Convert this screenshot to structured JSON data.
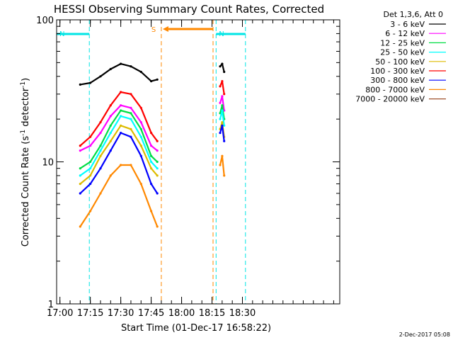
{
  "chart_data": {
    "type": "line",
    "title": "HESSI Observing Summary Count Rates, Corrected",
    "xlabel": "Start Time (01-Dec-17 16:58:22)",
    "ylabel_main": "Corrected Count Rate (s",
    "ylabel_sup1": "-1",
    "ylabel_mid": " detector",
    "ylabel_sup2": "-1",
    "ylabel_end": ")",
    "y_scale": "log",
    "xlim": [
      "16:58:22",
      "19:18:00"
    ],
    "ylim": [
      1,
      100
    ],
    "x_ticks": [
      "17:00",
      "17:15",
      "17:30",
      "17:45",
      "18:00",
      "18:15",
      "18:30"
    ],
    "y_ticks": [
      "1",
      "10",
      "100"
    ],
    "grid": false,
    "legend_position": "top-right",
    "legend_title": "Det 1,3,6, Att 0",
    "timestamp": "2-Dec-2017 05:08",
    "intervals": [
      {
        "label": "N",
        "color": "#00e5e5",
        "style": "dashed",
        "type": "night",
        "spans": [
          [
            "16:58:22",
            "17:14:30"
          ],
          [
            "18:17:00",
            "18:31:30"
          ]
        ]
      },
      {
        "label": "S",
        "color": "#ff8800",
        "style": "dashed",
        "type": "saa",
        "spans": [
          [
            "17:50:00",
            "18:15:30"
          ]
        ]
      }
    ],
    "series": [
      {
        "name": "3 - 6 keV",
        "color": "#000000",
        "segments": [
          {
            "x": [
              "17:10",
              "17:15",
              "17:20",
              "17:25",
              "17:30",
              "17:35",
              "17:40",
              "17:45",
              "17:48"
            ],
            "y": [
              35,
              36,
              40,
              45,
              49,
              47,
              43,
              37,
              38
            ]
          },
          {
            "x": [
              "18:19",
              "18:20",
              "18:21"
            ],
            "y": [
              47,
              49,
              43
            ]
          }
        ]
      },
      {
        "name": "6 - 12 keV",
        "color": "#ff00ff",
        "segments": [
          {
            "x": [
              "17:10",
              "17:15",
              "17:20",
              "17:25",
              "17:30",
              "17:35",
              "17:40",
              "17:45",
              "17:48"
            ],
            "y": [
              12,
              13,
              16,
              21,
              25,
              24,
              19,
              13,
              12
            ]
          },
          {
            "x": [
              "18:19",
              "18:20",
              "18:21"
            ],
            "y": [
              26,
              29,
              23
            ]
          }
        ]
      },
      {
        "name": "12 - 25 keV",
        "color": "#00dd44",
        "segments": [
          {
            "x": [
              "17:10",
              "17:15",
              "17:20",
              "17:25",
              "17:30",
              "17:35",
              "17:40",
              "17:45",
              "17:48"
            ],
            "y": [
              9,
              10,
              13,
              18,
              23,
              22,
              17,
              11,
              10
            ]
          },
          {
            "x": [
              "18:19",
              "18:20",
              "18:21"
            ],
            "y": [
              22,
              25,
              20
            ]
          }
        ]
      },
      {
        "name": "25 - 50 keV",
        "color": "#00ffff",
        "segments": [
          {
            "x": [
              "17:10",
              "17:15",
              "17:20",
              "17:25",
              "17:30",
              "17:35",
              "17:40",
              "17:45",
              "17:48"
            ],
            "y": [
              8,
              9,
              12,
              16,
              21,
              20,
              15,
              10,
              9
            ]
          },
          {
            "x": [
              "18:19",
              "18:20",
              "18:21"
            ],
            "y": [
              20,
              23,
              18
            ]
          }
        ]
      },
      {
        "name": "50 - 100 keV",
        "color": "#ddbb00",
        "segments": [
          {
            "x": [
              "17:10",
              "17:15",
              "17:20",
              "17:25",
              "17:30",
              "17:35",
              "17:40",
              "17:45",
              "17:48"
            ],
            "y": [
              7,
              8,
              11,
              14,
              18,
              17,
              13,
              9,
              8
            ]
          },
          {
            "x": [
              "18:19",
              "18:20",
              "18:21"
            ],
            "y": [
              17,
              19,
              15
            ]
          }
        ]
      },
      {
        "name": "100 - 300 keV",
        "color": "#ff0000",
        "segments": [
          {
            "x": [
              "17:10",
              "17:15",
              "17:20",
              "17:25",
              "17:30",
              "17:35",
              "17:40",
              "17:45",
              "17:48"
            ],
            "y": [
              13,
              15,
              19,
              25,
              31,
              30,
              24,
              16,
              14
            ]
          },
          {
            "x": [
              "18:19",
              "18:20",
              "18:21"
            ],
            "y": [
              34,
              37,
              30
            ]
          }
        ]
      },
      {
        "name": "300 - 800 keV",
        "color": "#0000ff",
        "segments": [
          {
            "x": [
              "17:10",
              "17:15",
              "17:20",
              "17:25",
              "17:30",
              "17:35",
              "17:40",
              "17:45",
              "17:48"
            ],
            "y": [
              6,
              7,
              9,
              12,
              16,
              15,
              11,
              7,
              6
            ]
          },
          {
            "x": [
              "18:19",
              "18:20",
              "18:21"
            ],
            "y": [
              16,
              18,
              14
            ]
          }
        ]
      },
      {
        "name": "800 - 7000 keV",
        "color": "#ff8800",
        "segments": [
          {
            "x": [
              "17:10",
              "17:15",
              "17:20",
              "17:25",
              "17:30",
              "17:35",
              "17:40",
              "17:45",
              "17:48"
            ],
            "y": [
              3.5,
              4.5,
              6,
              8,
              9.5,
              9.5,
              7,
              4.5,
              3.5
            ]
          },
          {
            "x": [
              "18:19",
              "18:20",
              "18:21"
            ],
            "y": [
              9.5,
              11,
              8
            ]
          }
        ]
      },
      {
        "name": "7000 - 20000 keV",
        "color": "#a0522d",
        "segments": []
      }
    ]
  }
}
